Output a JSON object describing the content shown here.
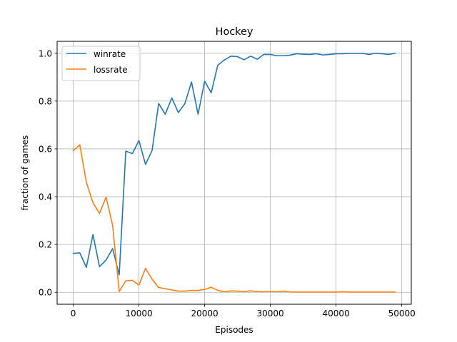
{
  "chart_data": {
    "type": "line",
    "title": "Hockey",
    "xlabel": "Episodes",
    "ylabel": "fraction of games",
    "xlim": [
      -2450,
      51450
    ],
    "ylim": [
      -0.05,
      1.05
    ],
    "xticks": [
      0,
      10000,
      20000,
      30000,
      40000,
      50000
    ],
    "xtick_labels": [
      "0",
      "10000",
      "20000",
      "30000",
      "40000",
      "50000"
    ],
    "yticks": [
      0.0,
      0.2,
      0.4,
      0.6,
      0.8,
      1.0
    ],
    "ytick_labels": [
      "0.0",
      "0.2",
      "0.4",
      "0.6",
      "0.8",
      "1.0"
    ],
    "grid": true,
    "legend_position": "top-left",
    "x": [
      0,
      1000,
      2000,
      3000,
      4000,
      5000,
      6000,
      7000,
      8000,
      9000,
      10000,
      11000,
      12000,
      13000,
      14000,
      15000,
      16000,
      17000,
      18000,
      19000,
      20000,
      21000,
      22000,
      23000,
      24000,
      25000,
      26000,
      27000,
      28000,
      29000,
      30000,
      31000,
      32000,
      33000,
      34000,
      35000,
      36000,
      37000,
      38000,
      39000,
      40000,
      41000,
      42000,
      43000,
      44000,
      45000,
      46000,
      47000,
      48000,
      49000
    ],
    "series": [
      {
        "name": "winrate",
        "color": "#1f77b4",
        "values": [
          0.163,
          0.165,
          0.104,
          0.242,
          0.107,
          0.135,
          0.183,
          0.073,
          0.591,
          0.58,
          0.635,
          0.535,
          0.593,
          0.79,
          0.745,
          0.813,
          0.752,
          0.79,
          0.88,
          0.745,
          0.883,
          0.835,
          0.95,
          0.972,
          0.988,
          0.986,
          0.973,
          0.988,
          0.975,
          0.995,
          0.995,
          0.99,
          0.99,
          0.992,
          0.998,
          0.996,
          0.995,
          0.998,
          0.993,
          0.995,
          0.998,
          0.998,
          1.0,
          1.0,
          1.0,
          0.995,
          1.0,
          0.998,
          0.995,
          1.0
        ]
      },
      {
        "name": "lossrate",
        "color": "#ff7f0e",
        "values": [
          0.592,
          0.617,
          0.46,
          0.375,
          0.33,
          0.398,
          0.28,
          0.003,
          0.048,
          0.05,
          0.03,
          0.1,
          0.055,
          0.02,
          0.015,
          0.01,
          0.005,
          0.005,
          0.008,
          0.008,
          0.012,
          0.021,
          0.008,
          0.002,
          0.006,
          0.005,
          0.003,
          0.006,
          0.003,
          0.002,
          0.003,
          0.002,
          0.005,
          0.001,
          0.001,
          0.001,
          0.001,
          0.001,
          0.001,
          0.001,
          0.001,
          0.002,
          0.001,
          0.001,
          0.001,
          0.001,
          0.001,
          0.001,
          0.001,
          0.001
        ]
      }
    ]
  }
}
